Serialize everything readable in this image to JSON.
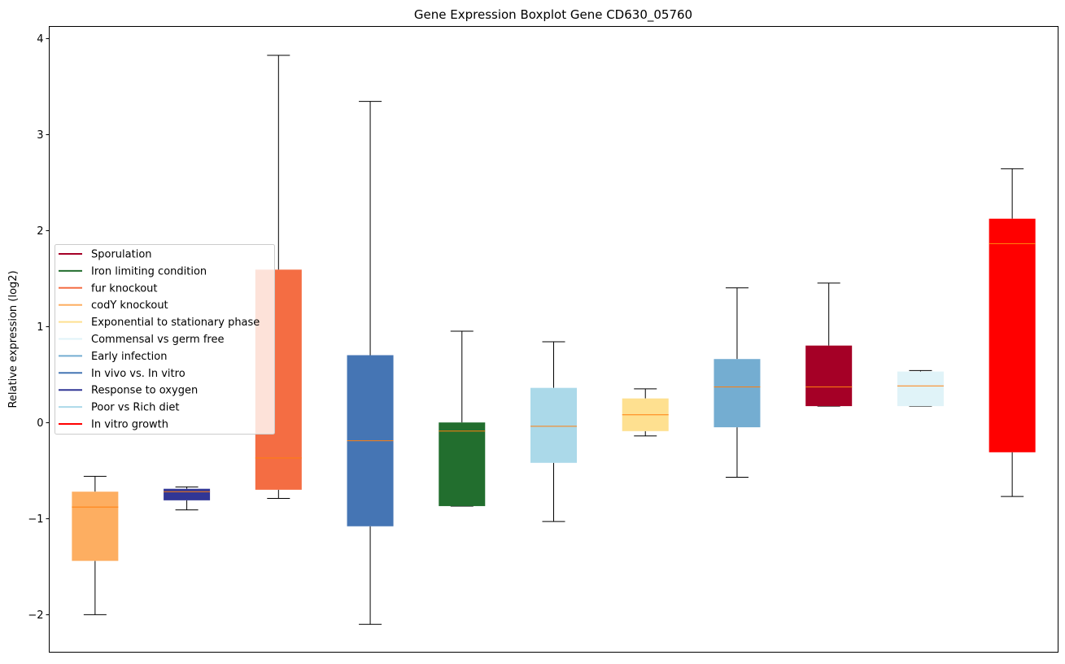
{
  "chart_data": {
    "type": "box",
    "title": "Gene Expression Boxplot Gene CD630_05760",
    "xlabel": "",
    "ylabel": "Relative expression (log2)",
    "ylim": [
      -2.39,
      4.12
    ],
    "yticks": [
      -2,
      -1,
      0,
      1,
      2,
      3,
      4
    ],
    "ytick_labels": [
      "−2",
      "−1",
      "0",
      "1",
      "2",
      "3",
      "4"
    ],
    "grid": false,
    "legend_position": "center-left",
    "median_color": "#ff7f0e",
    "boxes": [
      {
        "name": "codY knockout",
        "color": "#fdae61",
        "whislo": -2.0,
        "q1": -1.44,
        "med": -0.88,
        "q3": -0.72,
        "whishi": -0.56
      },
      {
        "name": "Response to oxygen",
        "color": "#313695",
        "whislo": -0.91,
        "q1": -0.81,
        "med": -0.72,
        "q3": -0.69,
        "whishi": -0.67
      },
      {
        "name": "fur knockout",
        "color": "#f46d43",
        "whislo": -0.79,
        "q1": -0.7,
        "med": -0.37,
        "q3": 1.59,
        "whishi": 3.82
      },
      {
        "name": "In vivo vs. In vitro",
        "color": "#4575b4",
        "whislo": -2.1,
        "q1": -1.08,
        "med": -0.19,
        "q3": 0.7,
        "whishi": 3.34
      },
      {
        "name": "Iron limiting condition",
        "color": "#226e2e",
        "whislo": -0.87,
        "q1": -0.87,
        "med": -0.09,
        "q3": 0.0,
        "whishi": 0.95
      },
      {
        "name": "Poor vs Rich diet",
        "color": "#abd9e9",
        "whislo": -1.03,
        "q1": -0.42,
        "med": -0.04,
        "q3": 0.36,
        "whishi": 0.84
      },
      {
        "name": "Exponential to stationary phase",
        "color": "#fee090",
        "whislo": -0.14,
        "q1": -0.09,
        "med": 0.08,
        "q3": 0.25,
        "whishi": 0.35
      },
      {
        "name": "Early infection",
        "color": "#74add1",
        "whislo": -0.57,
        "q1": -0.05,
        "med": 0.37,
        "q3": 0.66,
        "whishi": 1.4
      },
      {
        "name": "Sporulation",
        "color": "#a50026",
        "whislo": 0.17,
        "q1": 0.17,
        "med": 0.37,
        "q3": 0.8,
        "whishi": 1.45
      },
      {
        "name": "Commensal vs germ free",
        "color": "#e0f3f8",
        "whislo": 0.17,
        "q1": 0.17,
        "med": 0.38,
        "q3": 0.53,
        "whishi": 0.54
      },
      {
        "name": "In vitro growth",
        "color": "#ff0000",
        "whislo": -0.77,
        "q1": -0.31,
        "med": 1.86,
        "q3": 2.12,
        "whishi": 2.64
      }
    ],
    "legend": [
      {
        "label": "Sporulation",
        "color": "#a50026"
      },
      {
        "label": "Iron limiting condition",
        "color": "#226e2e"
      },
      {
        "label": "fur knockout",
        "color": "#f46d43"
      },
      {
        "label": "codY knockout",
        "color": "#fdae61"
      },
      {
        "label": "Exponential to stationary phase",
        "color": "#fee090"
      },
      {
        "label": "Commensal vs germ free",
        "color": "#e0f3f8"
      },
      {
        "label": "Early infection",
        "color": "#74add1"
      },
      {
        "label": "In vivo vs. In vitro",
        "color": "#4575b4"
      },
      {
        "label": "Response to oxygen",
        "color": "#313695"
      },
      {
        "label": "Poor vs Rich diet",
        "color": "#abd9e9"
      },
      {
        "label": "In vitro growth",
        "color": "#ff0000"
      }
    ]
  }
}
